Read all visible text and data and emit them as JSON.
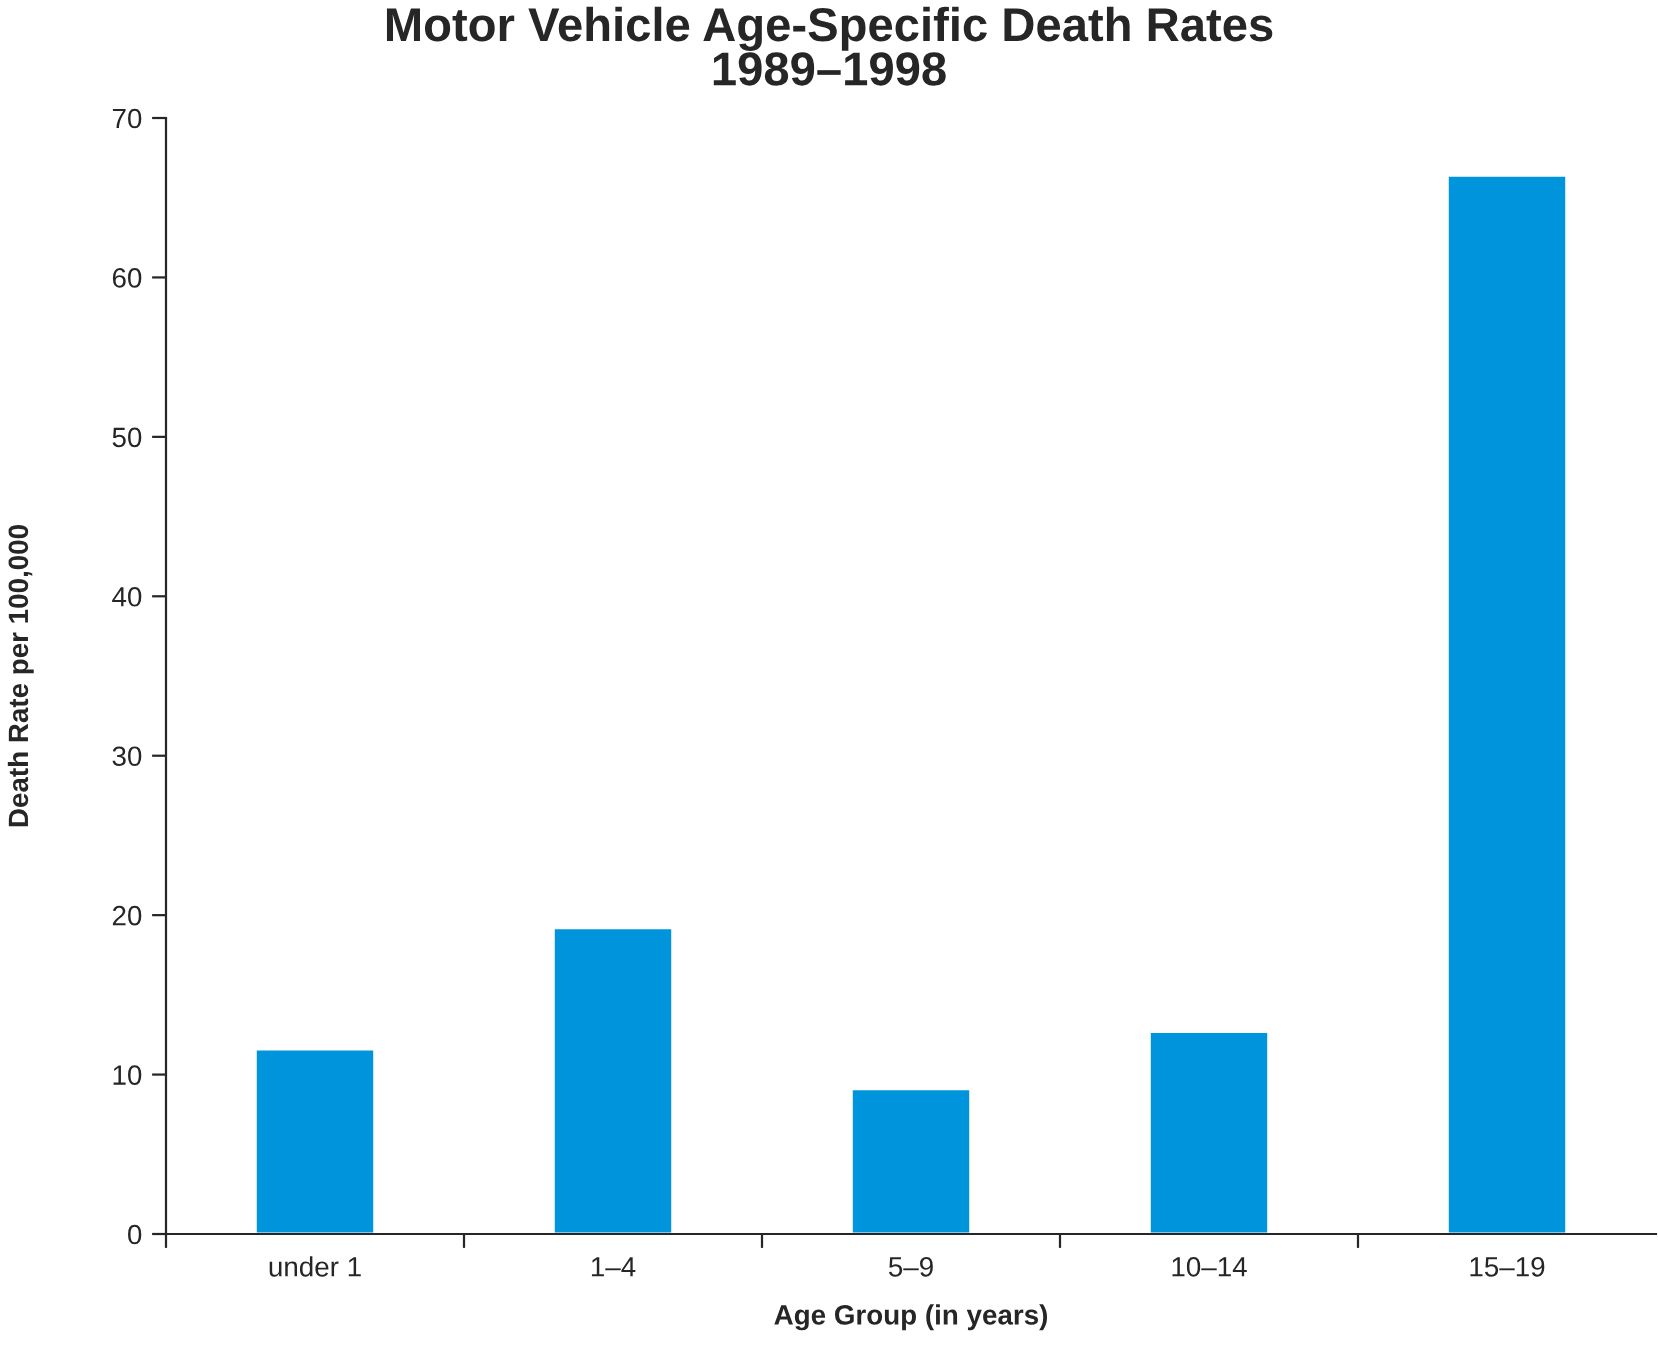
{
  "chart_data": {
    "type": "bar",
    "title": "Motor Vehicle Age-Specific Death Rates\n1989–1998",
    "xlabel": "Age Group (in years)",
    "ylabel": "Death Rate per 100,000",
    "categories": [
      "under 1",
      "1–4",
      "5–9",
      "10–14",
      "15–19"
    ],
    "values": [
      11.6,
      19.2,
      9.1,
      12.7,
      66.4
    ],
    "color": "#0094dd",
    "ylim": [
      0,
      70
    ],
    "yticks": [
      0,
      10,
      20,
      30,
      40,
      50,
      60,
      70
    ],
    "grid": false
  }
}
